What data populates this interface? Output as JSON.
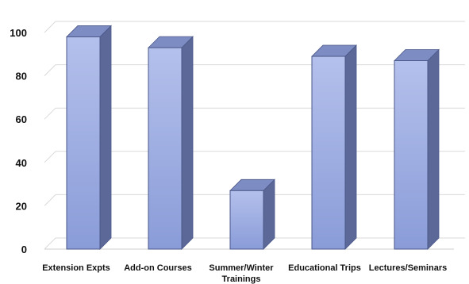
{
  "chart_data": {
    "type": "bar",
    "style": "3d-column",
    "categories": [
      [
        "Extension Expts"
      ],
      [
        "Add-on Courses"
      ],
      [
        "Summer/Winter",
        "Trainings"
      ],
      [
        "Educational Trips"
      ],
      [
        "Lectures/Seminars"
      ]
    ],
    "values": [
      98,
      93,
      27,
      89,
      87
    ],
    "ylim": [
      0,
      100
    ],
    "yticks": [
      "0",
      "20",
      "40",
      "60",
      "80",
      "100"
    ],
    "grid": true,
    "legend": "none",
    "colors": {
      "front_top": "#b4c0ec",
      "front_bottom": "#8a9cd8",
      "side": "#5b6898",
      "top": "#7d8cc2",
      "edge": "#4a5788"
    }
  }
}
